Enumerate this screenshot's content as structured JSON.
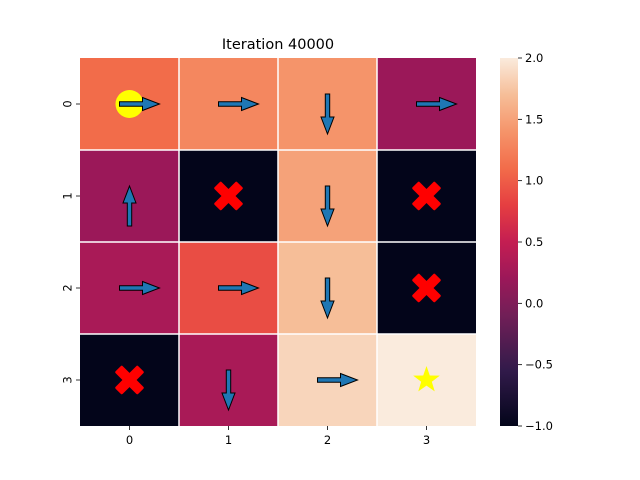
{
  "chart_data": {
    "type": "heatmap",
    "title": "Iteration 40000",
    "rows": [
      "0",
      "1",
      "2",
      "3"
    ],
    "cols": [
      "0",
      "1",
      "2",
      "3"
    ],
    "values": [
      [
        1.1,
        1.3,
        1.4,
        0.2
      ],
      [
        0.2,
        -1.0,
        1.5,
        -1.0
      ],
      [
        0.3,
        0.9,
        1.7,
        -1.0
      ],
      [
        -1.0,
        0.3,
        1.85,
        2.0
      ]
    ],
    "actions": [
      [
        "right",
        "right",
        "down",
        "right"
      ],
      [
        "up",
        "obstacle",
        "down",
        "obstacle"
      ],
      [
        "right",
        "right",
        "down",
        "obstacle"
      ],
      [
        "obstacle",
        "down",
        "right",
        "goal"
      ]
    ],
    "agent_position": [
      0,
      0
    ],
    "colorbar": {
      "min": -1.0,
      "max": 2.0,
      "ticks": [
        "−1.0",
        "−0.5",
        "0.0",
        "0.5",
        "1.0",
        "1.5",
        "2.0"
      ],
      "tick_values": [
        -1.0,
        -0.5,
        0.0,
        0.5,
        1.0,
        1.5,
        2.0
      ]
    },
    "colors": {
      "arrow_fill": "#1f77b4",
      "arrow_edge": "#000000",
      "obstacle": "#ff0000",
      "agent": "#ffff00",
      "goal": "#ffff00",
      "grid_line": "#ffffff"
    }
  }
}
